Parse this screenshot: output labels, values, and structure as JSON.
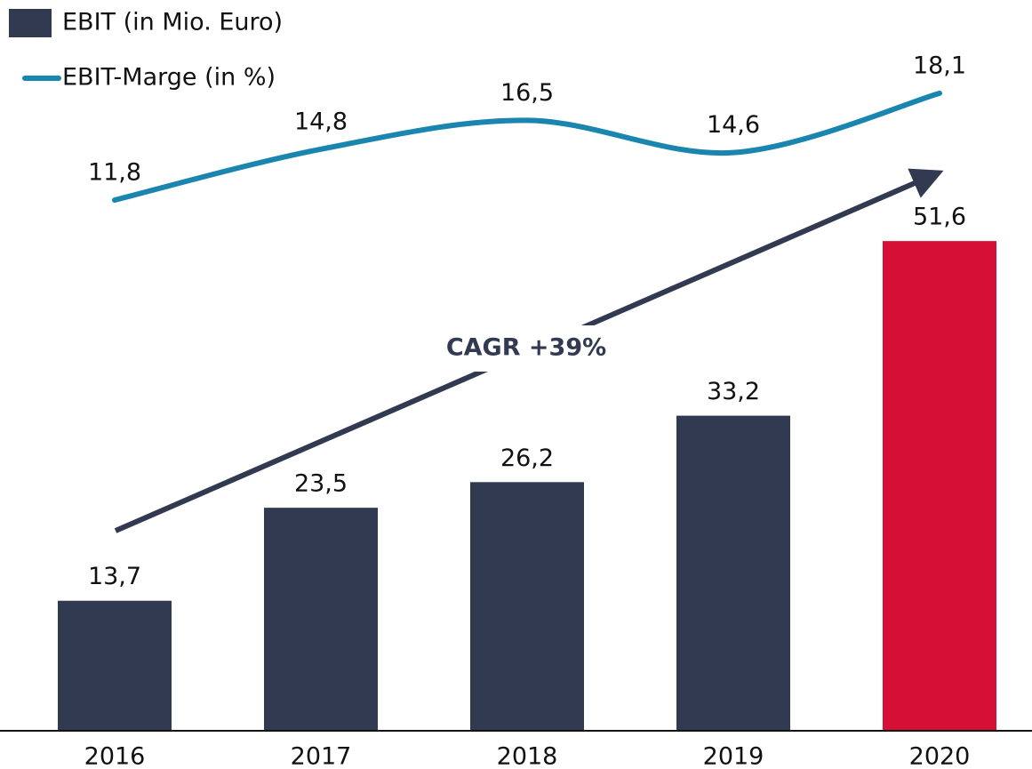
{
  "chart_data": {
    "type": "bar_line",
    "categories": [
      "2016",
      "2017",
      "2018",
      "2019",
      "2020"
    ],
    "series": [
      {
        "name": "EBIT (in Mio. Euro)",
        "type": "bar",
        "color": "#323a52",
        "colors": [
          "#323a52",
          "#323a52",
          "#323a52",
          "#323a52",
          "#d50f35"
        ],
        "values": [
          13.7,
          23.5,
          26.2,
          33.2,
          51.6
        ],
        "value_labels": [
          "13,7",
          "23,5",
          "26,2",
          "33,2",
          "51,6"
        ]
      },
      {
        "name": "EBIT-Marge (in %)",
        "type": "line",
        "axis": "y2",
        "color": "#1a86b0",
        "values": [
          11.8,
          14.8,
          16.5,
          14.6,
          18.1
        ],
        "value_labels": [
          "11,8",
          "14,8",
          "16,5",
          "14,6",
          "18,1"
        ]
      }
    ],
    "ylim": [
      0,
      77
    ],
    "y2lim": [
      -19.5,
      23.6
    ],
    "annotation": "CAGR +39%"
  }
}
